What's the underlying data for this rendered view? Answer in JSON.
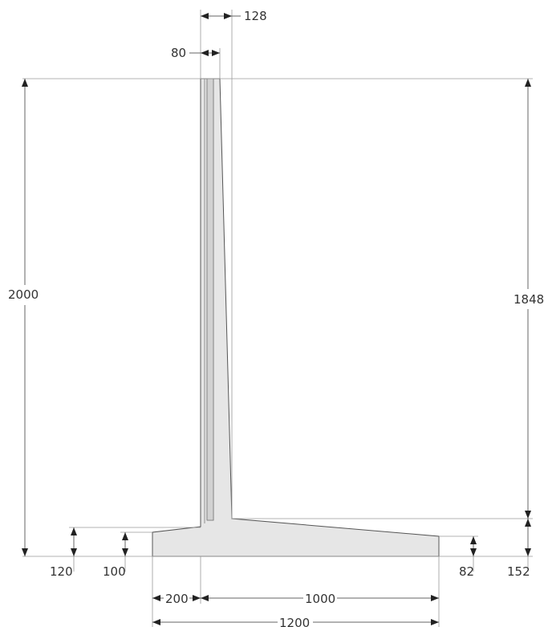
{
  "drawing": {
    "colors": {
      "concrete_fill": "#e6e6e6",
      "concrete_outline": "#555555",
      "inner_line": "#888888",
      "dimension_line": "#666666",
      "text": "#333333"
    },
    "dimensions": {
      "stem_top_total": "128",
      "stem_top_inner": "80",
      "total_height": "2000",
      "stem_height": "1848",
      "heel_root_thickness": "120",
      "toe_root_thickness": "100",
      "toe_length": "200",
      "heel_length": "1000",
      "base_length": "1200",
      "heel_end_thickness": "82",
      "base_thickness": "152"
    }
  }
}
